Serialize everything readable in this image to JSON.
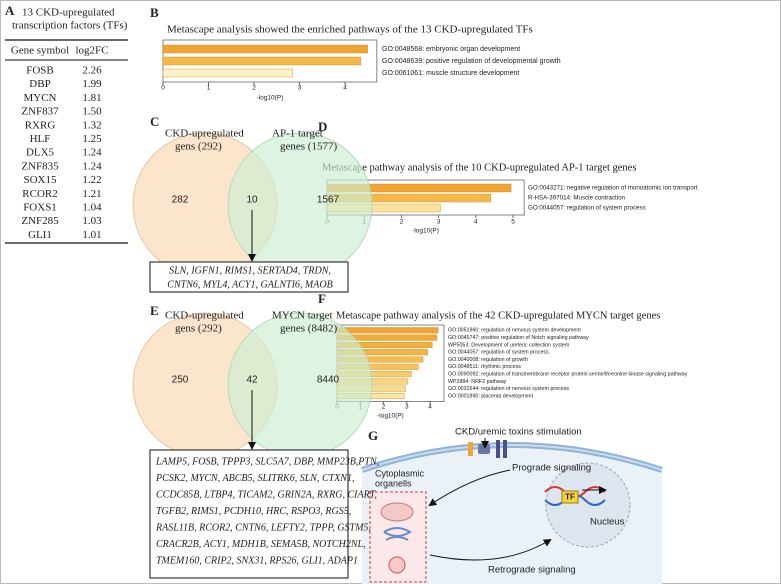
{
  "panels": [
    "A",
    "B",
    "C",
    "D",
    "E",
    "F",
    "G"
  ],
  "table": {
    "title_lines": [
      "13 CKD-upregulated",
      "transcription factors (TFs)"
    ],
    "header": [
      "Gene symbol",
      "log2FC"
    ],
    "rows": [
      [
        "FOSB",
        "2.26"
      ],
      [
        "DBP",
        "1.99"
      ],
      [
        "MYCN",
        "1.81"
      ],
      [
        "ZNF837",
        "1.50"
      ],
      [
        "RXRG",
        "1.32"
      ],
      [
        "HLF",
        "1.25"
      ],
      [
        "DLX5",
        "1.24"
      ],
      [
        "ZNF835",
        "1.24"
      ],
      [
        "SOX15",
        "1.22"
      ],
      [
        "RCOR2",
        "1.21"
      ],
      [
        "FOXS1",
        "1.04"
      ],
      [
        "ZNF285",
        "1.03"
      ],
      [
        "GLI1",
        "1.01"
      ]
    ]
  },
  "chart_data": [
    {
      "type": "bar",
      "title": "Metascape analysis showed the enriched pathways of the 13 CKD-upregulated  TFs",
      "categories": [
        "GO:0048568: embryonic organ development",
        "GO:0048639: positive regulation of developmental growth",
        "GO:0061061: muscle structure development"
      ],
      "values": [
        4.5,
        4.35,
        2.85
      ],
      "colors": [
        "#f0a431",
        "#f4b848",
        "#fdf2c4"
      ],
      "xlim": [
        0,
        4.7
      ],
      "xticks": [
        0,
        1,
        2,
        3,
        4
      ],
      "xlabel": "-log10(P)"
    },
    {
      "type": "bar",
      "title": "Metascape pathway analysis of the 10 CKD-upregulated  AP-1 target genes",
      "categories": [
        "GO:0043271: negative regulation of monoatomic ion transport",
        "R-HSA-397014: Muscle contraction",
        "GO:0044057: regulation of system process"
      ],
      "values": [
        4.95,
        4.4,
        3.05
      ],
      "colors": [
        "#f0a431",
        "#f4b848",
        "#fbe59c"
      ],
      "xlim": [
        0,
        5.3
      ],
      "xticks": [
        0,
        1,
        2,
        3,
        4,
        5
      ],
      "xlabel": "-log10(P)"
    },
    {
      "type": "bar",
      "title": "Metascape pathway analysis of the 42 CKD-upregulated  MYCN target genes",
      "categories": [
        "GO:0051960: regulation of nervous system development",
        "GO:0045747: positive regulation of Notch signaling pathway",
        "WP5053: Development of ureteric collection system",
        "GO:0044057: regulation of system process",
        "GO:0040008: regulation of growth",
        "GO:0048511: rhythmic process",
        "GO:0090092: regulation of transmembrane receptor protein serine/threonine kinase signaling pathway",
        "WP2884: NRF2 pathway",
        "GO:0031644: regulation of nervous system process",
        "GO:0001890: placenta development"
      ],
      "values": [
        4.35,
        4.3,
        4.1,
        3.9,
        3.7,
        3.5,
        3.2,
        3.05,
        2.95,
        2.9
      ],
      "colors": [
        "#f0a431",
        "#f1a935",
        "#f2ae3b",
        "#f3b443",
        "#f4bb4d",
        "#f5c35b",
        "#f7cb6b",
        "#f8d47c",
        "#fadd8e",
        "#fbe6a2"
      ],
      "xlim": [
        0,
        4.6
      ],
      "xticks": [
        0,
        1,
        2,
        3,
        4
      ],
      "xlabel": "-log10(P)"
    }
  ],
  "venns": [
    {
      "left_label": [
        "CKD-upregulated",
        "gens (292)"
      ],
      "right_label": [
        "AP-1 target",
        "genes (1577)"
      ],
      "counts": [
        282,
        10,
        1567
      ],
      "genes": [
        "SLN,  IGFN1,  RIMS1,  SERTAD4,  TRDN,",
        "CNTN6, MYL4, ACY1, GALNTI6, MAOB"
      ]
    },
    {
      "left_label": [
        "CKD-upregulated",
        "gens (292)"
      ],
      "right_label": [
        "MYCN target",
        "genes (8482)"
      ],
      "counts": [
        250,
        42,
        8440
      ],
      "genes": [
        "LAMP5, FOSB, TPPP3, SLC5A7, DBP, MMP23B,PTN,",
        "PCSK2, MYCN, ABCB5, SLITRK6, SLN, CTXN1,",
        "CCDC85B, LTBP4, TICAM2, GRIN2A, RXRG, CIART,",
        "TGFB2, RIMS1, PCDH10, HRC, RSPO3, RGS5,",
        "RASL11B, RCOR2, CNTN6, LEFTY2, TPPP, GSTM5,",
        "CRACR2B, ACY1, MDH1B, SEMA5B, NOTCH2NL,",
        "TMEM160, CRIP2, SNX31, RPS26, GLI1, ADAP1"
      ]
    }
  ],
  "diagram": {
    "stimulus": "CKD/uremic toxins stimulation",
    "organelles": [
      "Cytoplasmic",
      "organells"
    ],
    "prograde": "Prograde signaling",
    "tf": "TF",
    "nucleus": "Nucleus",
    "retrograde": "Retrograde signaling"
  }
}
